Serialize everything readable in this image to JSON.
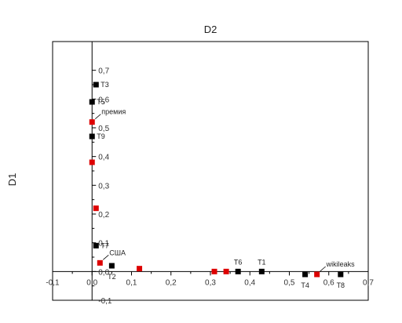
{
  "chart_data": {
    "type": "scatter",
    "title": "",
    "xlabel": "D2",
    "ylabel": "D1",
    "xlim": [
      -0.1,
      0.7
    ],
    "ylim": [
      -0.1,
      0.8
    ],
    "x_ticks": [
      {
        "v": -0.1,
        "label": "-0,1"
      },
      {
        "v": 0.0,
        "label": "0,0"
      },
      {
        "v": 0.1,
        "label": "0,1"
      },
      {
        "v": 0.2,
        "label": "0,2"
      },
      {
        "v": 0.3,
        "label": "0,3"
      },
      {
        "v": 0.4,
        "label": "0,4"
      },
      {
        "v": 0.5,
        "label": "0,5"
      },
      {
        "v": 0.6,
        "label": "0,6"
      },
      {
        "v": 0.7,
        "label": "0,7"
      }
    ],
    "y_ticks": [
      {
        "v": -0.1,
        "label": "-0,1"
      },
      {
        "v": 0.0,
        "label": "0,0"
      },
      {
        "v": 0.1,
        "label": "0,1"
      },
      {
        "v": 0.2,
        "label": "0,2"
      },
      {
        "v": 0.3,
        "label": "0,3"
      },
      {
        "v": 0.4,
        "label": "0,4"
      },
      {
        "v": 0.5,
        "label": "0,5"
      },
      {
        "v": 0.6,
        "label": "0,6"
      },
      {
        "v": 0.7,
        "label": "0,7"
      }
    ],
    "grid": false,
    "legend": "none",
    "colors": {
      "black": "#000000",
      "red": "#dd0000",
      "axis": "#000000"
    },
    "points": [
      {
        "x": 0.01,
        "y": 0.65,
        "color": "black",
        "label": "T3",
        "label_pos": "right"
      },
      {
        "x": 0.0,
        "y": 0.59,
        "color": "black",
        "label": "T5",
        "label_pos": "right"
      },
      {
        "x": 0.0,
        "y": 0.52,
        "color": "red",
        "label": "премия",
        "label_pos": "leader-up"
      },
      {
        "x": 0.0,
        "y": 0.47,
        "color": "black",
        "label": "T9",
        "label_pos": "right"
      },
      {
        "x": 0.0,
        "y": 0.38,
        "color": "red",
        "label": "",
        "label_pos": ""
      },
      {
        "x": 0.01,
        "y": 0.22,
        "color": "red",
        "label": "",
        "label_pos": ""
      },
      {
        "x": 0.01,
        "y": 0.09,
        "color": "black",
        "label": "T7",
        "label_pos": "right"
      },
      {
        "x": 0.02,
        "y": 0.03,
        "color": "red",
        "label": "США",
        "label_pos": "leader-up"
      },
      {
        "x": 0.05,
        "y": 0.02,
        "color": "black",
        "label": "T2",
        "label_pos": "below"
      },
      {
        "x": 0.12,
        "y": 0.01,
        "color": "red",
        "label": "",
        "label_pos": ""
      },
      {
        "x": 0.31,
        "y": 0.0,
        "color": "red",
        "label": "",
        "label_pos": ""
      },
      {
        "x": 0.34,
        "y": 0.0,
        "color": "red",
        "label": "",
        "label_pos": ""
      },
      {
        "x": 0.37,
        "y": 0.0,
        "color": "black",
        "label": "T6",
        "label_pos": "above"
      },
      {
        "x": 0.43,
        "y": 0.0,
        "color": "black",
        "label": "T1",
        "label_pos": "above"
      },
      {
        "x": 0.54,
        "y": -0.01,
        "color": "black",
        "label": "T4",
        "label_pos": "below"
      },
      {
        "x": 0.57,
        "y": -0.01,
        "color": "red",
        "label": "wikileaks",
        "label_pos": "leader-up"
      },
      {
        "x": 0.63,
        "y": -0.01,
        "color": "black",
        "label": "T8",
        "label_pos": "below"
      }
    ]
  }
}
